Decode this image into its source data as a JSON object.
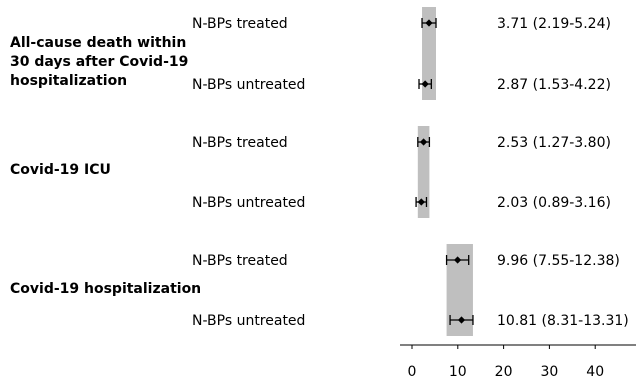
{
  "chart_data": {
    "type": "forest",
    "xlim": [
      0,
      40
    ],
    "x_ticks": [
      "0",
      "10",
      "20",
      "30",
      "40"
    ],
    "groups": [
      {
        "label_lines": [
          "All-cause death within",
          "30 days after Covid-19",
          "hospitalization"
        ],
        "rows": [
          {
            "label": "N-BPs treated",
            "estimate": 3.71,
            "ci_low": 2.19,
            "ci_high": 5.24,
            "text": "3.71 (2.19-5.24)"
          },
          {
            "label": "N-BPs untreated",
            "estimate": 2.87,
            "ci_low": 1.53,
            "ci_high": 4.22,
            "text": "2.87 (1.53-4.22)"
          }
        ],
        "band": [
          2.19,
          5.24
        ]
      },
      {
        "label_lines": [
          "Covid-19 ICU"
        ],
        "rows": [
          {
            "label": "N-BPs treated",
            "estimate": 2.53,
            "ci_low": 1.27,
            "ci_high": 3.8,
            "text": "2.53 (1.27-3.80)"
          },
          {
            "label": "N-BPs untreated",
            "estimate": 2.03,
            "ci_low": 0.89,
            "ci_high": 3.16,
            "text": "2.03 (0.89-3.16)"
          }
        ],
        "band": [
          1.27,
          3.8
        ]
      },
      {
        "label_lines": [
          "Covid-19 hospitalization"
        ],
        "rows": [
          {
            "label": "N-BPs treated",
            "estimate": 9.96,
            "ci_low": 7.55,
            "ci_high": 12.38,
            "text": "9.96 (7.55-12.38)"
          },
          {
            "label": "N-BPs untreated",
            "estimate": 10.81,
            "ci_low": 8.31,
            "ci_high": 13.31,
            "text": "10.81 (8.31-13.31)"
          }
        ],
        "band": [
          7.55,
          13.31
        ]
      }
    ],
    "colors": {
      "band": "#bfbfbf",
      "marker": "#000000",
      "axis": "#000000"
    }
  }
}
